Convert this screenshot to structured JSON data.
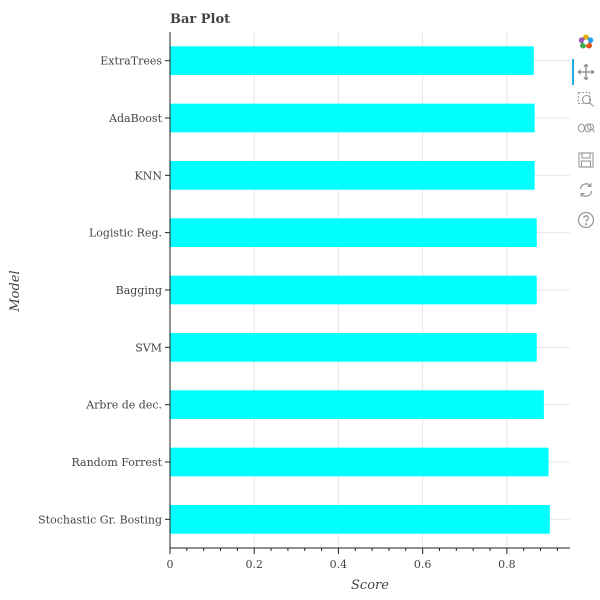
{
  "chart_data": {
    "type": "bar",
    "orientation": "horizontal",
    "title": "Bar Plot",
    "xlabel": "Score",
    "ylabel": "Model",
    "xlim": [
      0,
      0.95
    ],
    "x_ticks": [
      "0",
      "0.2",
      "0.4",
      "0.6",
      "0.8"
    ],
    "categories": [
      "ExtraTrees",
      "AdaBoost",
      "KNN",
      "Logistic Reg.",
      "Bagging",
      "SVM",
      "Arbre de dec.",
      "Random Forrest",
      "Stochastic Gr. Bosting"
    ],
    "values": [
      0.864,
      0.866,
      0.866,
      0.871,
      0.871,
      0.871,
      0.888,
      0.899,
      0.902
    ],
    "bar_color": "#00ffff",
    "grid": true
  },
  "toolbar": {
    "items": [
      "bokeh-logo-icon",
      "pan-icon",
      "box-zoom-icon",
      "wheel-zoom-icon",
      "save-icon",
      "reset-icon",
      "help-icon"
    ],
    "active_color": "#26aae1"
  }
}
